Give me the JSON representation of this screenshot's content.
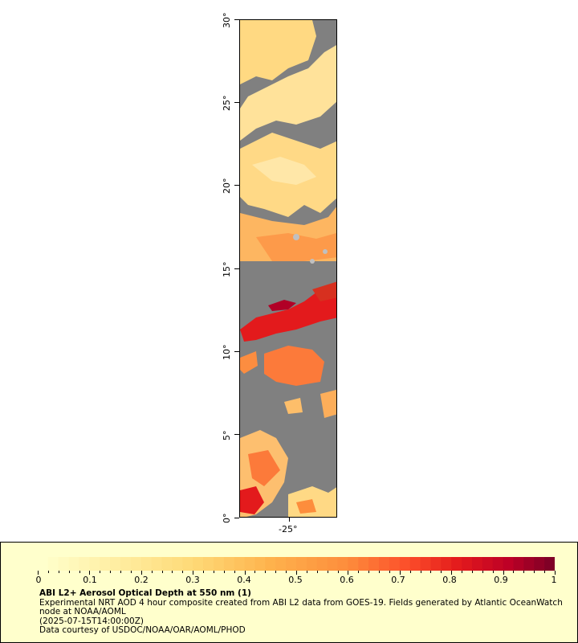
{
  "map": {
    "y_tick_labels": [
      "0°",
      "5°",
      "10°",
      "15°",
      "20°",
      "25°",
      "30°"
    ],
    "x_tick_labels": [
      "-25°"
    ],
    "lat_range": [
      0,
      30
    ],
    "colors": {
      "no_data": "#808080",
      "cloud": "#c0c0c0",
      "low": "#fff0b4",
      "mid": "#fdb461",
      "high": "#e31a1c",
      "extreme": "#800026"
    }
  },
  "legend": {
    "scale_labels": [
      "0",
      "0.1",
      "0.2",
      "0.3",
      "0.4",
      "0.5",
      "0.6",
      "0.7",
      "0.8",
      "0.9",
      "1"
    ],
    "scale_min": 0,
    "scale_max": 1,
    "title": "ABI L2+ Aerosol Optical Depth at 550 nm (1)",
    "line1": "Experimental NRT AOD 4 hour composite created from ABI L2 data from GOES-19. Fields generated by Atlantic OceanWatch node at NOAA/AOML",
    "line2": "(2025-07-15T14:00:00Z)",
    "line3": "Data courtesy of USDOC/NOAA/OAR/AOML/PHOD"
  }
}
